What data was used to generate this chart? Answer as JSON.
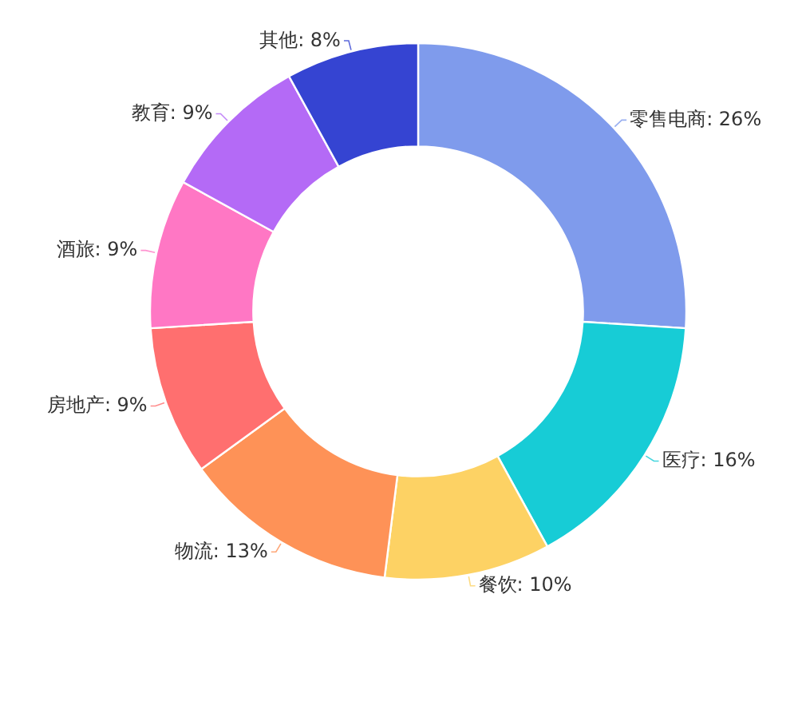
{
  "chart_data": {
    "type": "donut",
    "categories": [
      "零售电商",
      "医疗",
      "餐饮",
      "物流",
      "房地产",
      "酒旅",
      "教育",
      "其他"
    ],
    "values": [
      26,
      16,
      10,
      13,
      9,
      9,
      9,
      8
    ],
    "value_labels": [
      "26%",
      "16%",
      "10%",
      "13%",
      "9%",
      "9%",
      "9%",
      "8%"
    ],
    "colors": [
      "#7f9bec",
      "#17ccd6",
      "#fdd264",
      "#fe9257",
      "#ff6f6f",
      "#ff77c4",
      "#b46af6",
      "#3544d2"
    ]
  }
}
